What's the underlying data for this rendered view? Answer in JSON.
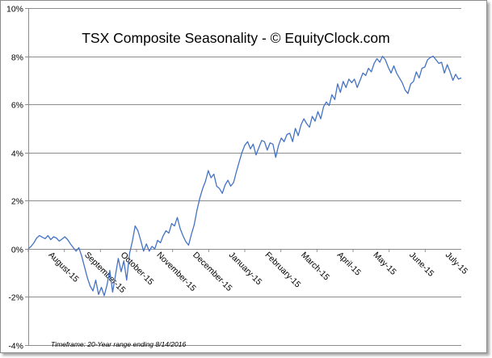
{
  "chart_data": {
    "type": "line",
    "title": "TSX Composite Seasonality - © EquityClock.com",
    "footnote": "Timeframe: 20-Year range ending 8/14/2016",
    "xlabel": "",
    "ylabel": "",
    "ylim": [
      -4,
      10
    ],
    "y_ticks": [
      -4,
      -2,
      0,
      2,
      4,
      6,
      8,
      10
    ],
    "y_tick_labels": [
      "-4%",
      "-2%",
      "0%",
      "2%",
      "4%",
      "6%",
      "8%",
      "10%"
    ],
    "y_unit": "%",
    "grid": true,
    "line_color": "#4472c4",
    "x_tick_labels": [
      "August-15",
      "September-15",
      "October-15",
      "November-15",
      "December-15",
      "January-15",
      "February-15",
      "March-15",
      "April-15",
      "May-15",
      "June-15",
      "July-15"
    ],
    "series": [
      {
        "values": [
          0.0,
          0.1,
          0.25,
          0.45,
          0.55,
          0.48,
          0.42,
          0.55,
          0.38,
          0.5,
          0.45,
          0.32,
          0.4,
          0.5,
          0.38,
          0.2,
          0.05,
          -0.1,
          0.05,
          -0.3,
          -0.75,
          -1.2,
          -1.55,
          -1.75,
          -1.3,
          -1.9,
          -1.6,
          -1.95,
          -1.5,
          -0.9,
          -1.8,
          -1.1,
          -0.4,
          -0.95,
          -0.5,
          -1.3,
          -0.2,
          0.3,
          0.95,
          0.75,
          0.35,
          -0.1,
          0.2,
          -0.1,
          0.1,
          0.0,
          0.35,
          0.25,
          0.55,
          0.75,
          0.65,
          1.05,
          0.95,
          1.3,
          0.85,
          0.55,
          0.3,
          0.15,
          0.6,
          1.0,
          1.6,
          2.1,
          2.5,
          2.8,
          3.25,
          2.95,
          3.1,
          2.6,
          2.5,
          2.3,
          2.65,
          2.85,
          2.6,
          2.75,
          3.2,
          3.6,
          4.0,
          4.3,
          4.45,
          4.15,
          4.35,
          3.9,
          4.2,
          4.5,
          4.45,
          4.1,
          4.4,
          4.35,
          3.8,
          4.3,
          4.6,
          4.45,
          4.75,
          4.8,
          4.45,
          5.0,
          4.7,
          5.15,
          5.4,
          5.2,
          5.05,
          5.5,
          5.3,
          5.7,
          5.4,
          5.9,
          6.1,
          5.95,
          6.4,
          6.2,
          6.85,
          6.5,
          6.95,
          6.7,
          7.05,
          6.9,
          7.05,
          6.7,
          7.0,
          7.3,
          7.2,
          7.5,
          7.35,
          7.7,
          7.9,
          7.75,
          8.0,
          7.85,
          7.55,
          7.3,
          7.6,
          7.3,
          7.1,
          6.9,
          6.6,
          6.45,
          6.85,
          6.95,
          7.35,
          7.1,
          7.5,
          7.55,
          7.85,
          7.95,
          8.0,
          7.85,
          7.7,
          7.75,
          7.3,
          7.65,
          7.35,
          7.0,
          7.25,
          7.05,
          7.1
        ]
      }
    ]
  }
}
